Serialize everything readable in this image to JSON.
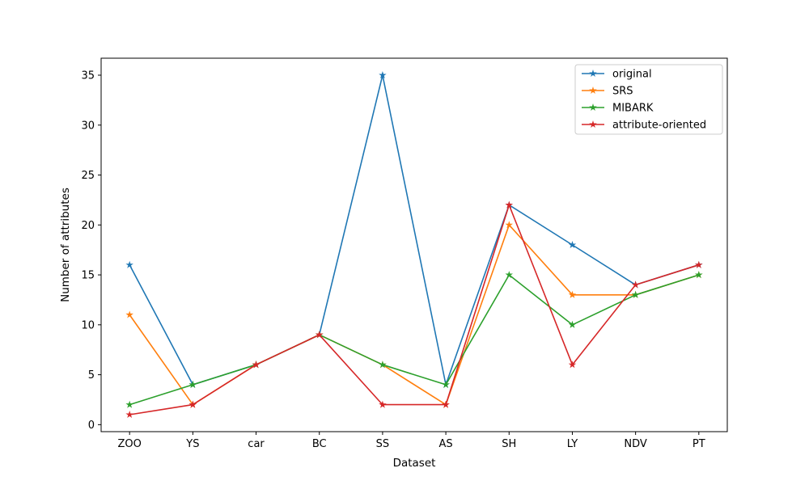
{
  "figure": {
    "background": "#ffffff",
    "plot_background": "#ffffff",
    "spine_color": "#000000",
    "text_color": "#000000"
  },
  "chart_data": {
    "type": "line",
    "title": "",
    "xlabel": "Dataset",
    "ylabel": "Number of attributes",
    "categories": [
      "ZOO",
      "YS",
      "car",
      "BC",
      "SS",
      "AS",
      "SH",
      "LY",
      "NDV",
      "PT"
    ],
    "series": [
      {
        "name": "original",
        "color": "#1f77b4",
        "marker": "star",
        "values": [
          16,
          4,
          6,
          9,
          35,
          4,
          22,
          18,
          14,
          16
        ]
      },
      {
        "name": "SRS",
        "color": "#ff7f0e",
        "marker": "star",
        "values": [
          11,
          2,
          6,
          9,
          6,
          2,
          20,
          13,
          13,
          15
        ]
      },
      {
        "name": "MIBARK",
        "color": "#2ca02c",
        "marker": "star",
        "values": [
          2,
          4,
          6,
          9,
          6,
          4,
          15,
          10,
          13,
          15
        ]
      },
      {
        "name": "attribute-oriented",
        "color": "#d62728",
        "marker": "star",
        "values": [
          1,
          2,
          6,
          9,
          2,
          2,
          22,
          6,
          14,
          16
        ]
      }
    ],
    "yticks": [
      0,
      5,
      10,
      15,
      20,
      25,
      30,
      35
    ],
    "ylim": [
      -0.7,
      36.7
    ],
    "grid": false,
    "legend": {
      "position": "upper right",
      "border_color": "#cccccc",
      "background": "#ffffff"
    }
  }
}
